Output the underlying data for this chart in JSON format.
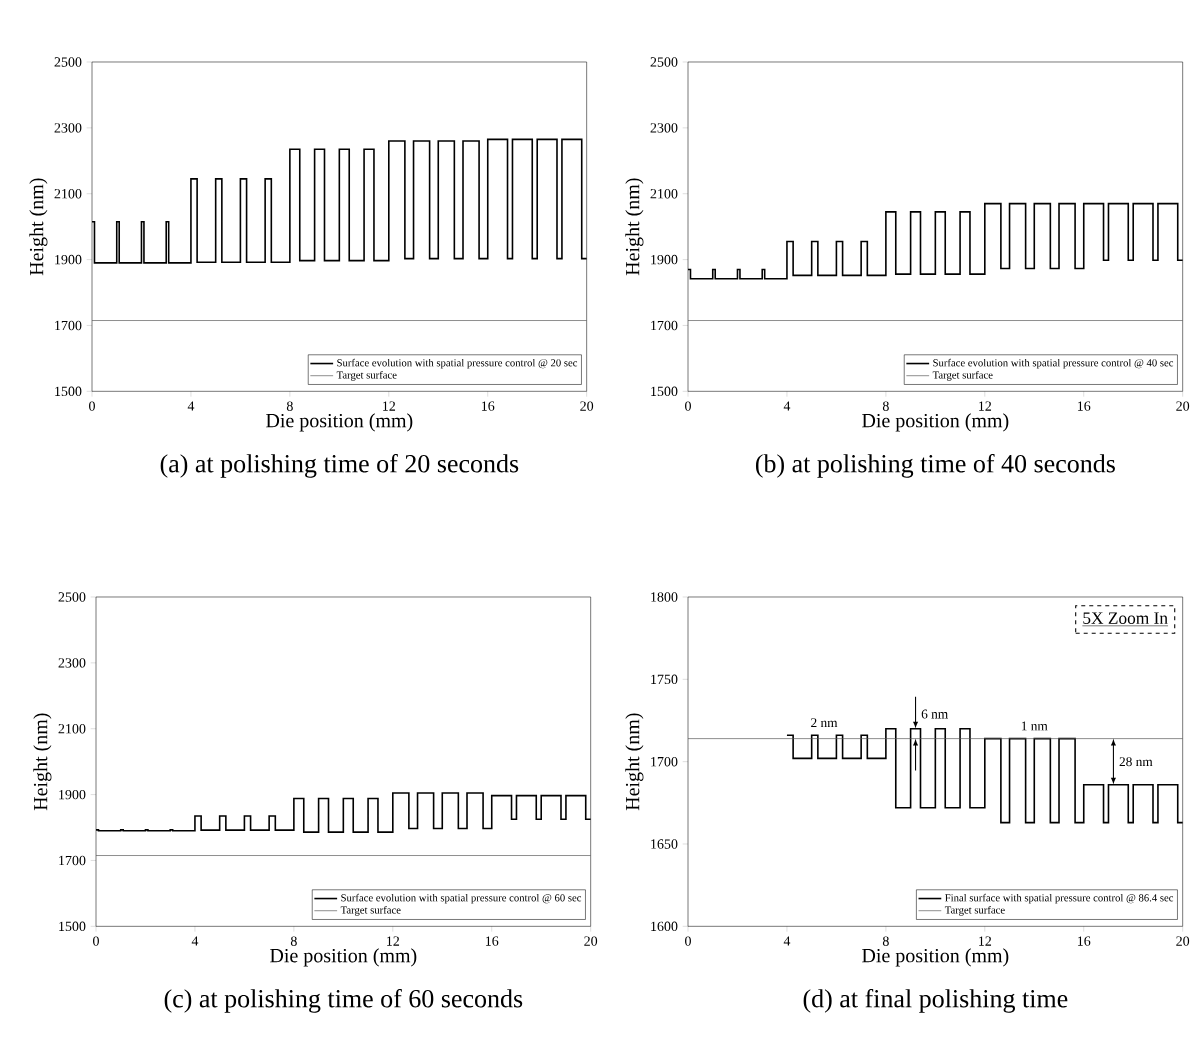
{
  "chart_data": [
    {
      "type": "line",
      "title": "(a) at polishing time of 20 seconds",
      "xlabel": "Die position (mm)",
      "ylabel": "Height (nm)",
      "xlim": [
        0,
        20
      ],
      "ylim": [
        1500,
        2500
      ],
      "xticks": [
        0,
        4,
        8,
        12,
        16,
        20
      ],
      "yticks": [
        1500,
        1700,
        1900,
        2100,
        2300,
        2500
      ],
      "legend": "bottom right",
      "series": [
        {
          "name": "Surface evolution with spatial pressure control @ 20 sec",
          "type": "step",
          "color": "#000000",
          "x": [
            0,
            0.1,
            1,
            1.1,
            2,
            2.1,
            3,
            3.1,
            4,
            4.25,
            5,
            5.25,
            6,
            6.25,
            7,
            7.25,
            8,
            8.4,
            9,
            9.4,
            10,
            10.4,
            11,
            11.4,
            12,
            12.65,
            13,
            13.65,
            14,
            14.65,
            15,
            15.65,
            16,
            16.8,
            17,
            17.8,
            18,
            18.8,
            19,
            19.8,
            20
          ],
          "values": [
            2015,
            1890,
            2015,
            1890,
            2015,
            1890,
            2015,
            1890,
            2145,
            1892,
            2145,
            1892,
            2145,
            1892,
            2145,
            1892,
            2235,
            1897,
            2235,
            1897,
            2235,
            1897,
            2235,
            1897,
            2260,
            1903,
            2260,
            1903,
            2260,
            1903,
            2260,
            1903,
            2265,
            1903,
            2265,
            1903,
            2265,
            1903,
            2265,
            1903,
            1903
          ]
        },
        {
          "name": "Target surface",
          "type": "line",
          "color": "#555555",
          "x": [
            0,
            20
          ],
          "values": [
            1715,
            1715
          ]
        }
      ]
    },
    {
      "type": "line",
      "title": "(b) at polishing time of 40 seconds",
      "xlabel": "Die position (mm)",
      "ylabel": "Height (nm)",
      "xlim": [
        0,
        20
      ],
      "ylim": [
        1500,
        2500
      ],
      "xticks": [
        0,
        4,
        8,
        12,
        16,
        20
      ],
      "yticks": [
        1500,
        1700,
        1900,
        2100,
        2300,
        2500
      ],
      "legend": "bottom right",
      "series": [
        {
          "name": "Surface evolution with spatial pressure control @ 40 sec",
          "type": "step",
          "color": "#000000",
          "x": [
            0,
            0.1,
            1,
            1.1,
            2,
            2.1,
            3,
            3.1,
            4,
            4.25,
            5,
            5.25,
            6,
            6.25,
            7,
            7.25,
            8,
            8.4,
            9,
            9.4,
            10,
            10.4,
            11,
            11.4,
            12,
            12.65,
            13,
            13.65,
            14,
            14.65,
            15,
            15.65,
            16,
            16.8,
            17,
            17.8,
            18,
            18.8,
            19,
            19.8,
            20
          ],
          "values": [
            1870,
            1842,
            1870,
            1842,
            1870,
            1842,
            1870,
            1842,
            1955,
            1852,
            1955,
            1852,
            1955,
            1852,
            1955,
            1852,
            2045,
            1856,
            2045,
            1856,
            2045,
            1856,
            2045,
            1856,
            2070,
            1873,
            2070,
            1873,
            2070,
            1873,
            2070,
            1873,
            2070,
            1898,
            2070,
            1898,
            2070,
            1898,
            2070,
            1898,
            1898
          ]
        },
        {
          "name": "Target surface",
          "type": "line",
          "color": "#555555",
          "x": [
            0,
            20
          ],
          "values": [
            1715,
            1715
          ]
        }
      ]
    },
    {
      "type": "line",
      "title": "(c) at polishing time of 60 seconds",
      "xlabel": "Die position (mm)",
      "ylabel": "Height (nm)",
      "xlim": [
        0,
        20
      ],
      "ylim": [
        1500,
        2500
      ],
      "xticks": [
        0,
        4,
        8,
        12,
        16,
        20
      ],
      "yticks": [
        1500,
        1700,
        1900,
        2100,
        2300,
        2500
      ],
      "legend": "bottom right",
      "series": [
        {
          "name": "Surface evolution with spatial pressure control @ 60 sec",
          "type": "step",
          "color": "#000000",
          "x": [
            0,
            0.1,
            1,
            1.1,
            2,
            2.1,
            3,
            3.1,
            4,
            4.25,
            5,
            5.25,
            6,
            6.25,
            7,
            7.25,
            8,
            8.4,
            9,
            9.4,
            10,
            10.4,
            11,
            11.4,
            12,
            12.65,
            13,
            13.65,
            14,
            14.65,
            15,
            15.65,
            16,
            16.8,
            17,
            17.8,
            18,
            18.8,
            19,
            19.8,
            20
          ],
          "values": [
            1793,
            1790,
            1793,
            1790,
            1793,
            1790,
            1793,
            1790,
            1835,
            1792,
            1835,
            1792,
            1835,
            1792,
            1835,
            1792,
            1888,
            1786,
            1888,
            1786,
            1888,
            1786,
            1888,
            1786,
            1905,
            1797,
            1905,
            1797,
            1905,
            1797,
            1905,
            1797,
            1897,
            1825,
            1897,
            1825,
            1897,
            1825,
            1897,
            1825,
            1825
          ]
        },
        {
          "name": "Target surface",
          "type": "line",
          "color": "#555555",
          "x": [
            0,
            20
          ],
          "values": [
            1715,
            1715
          ]
        }
      ]
    },
    {
      "type": "line",
      "title": "(d) at final polishing time",
      "xlabel": "Die position (mm)",
      "ylabel": "Height (nm)",
      "xlim": [
        0,
        20
      ],
      "ylim": [
        1600,
        1800
      ],
      "xticks": [
        0,
        4,
        8,
        12,
        16,
        20
      ],
      "yticks": [
        1600,
        1650,
        1700,
        1750,
        1800
      ],
      "legend": "bottom right",
      "annotations": [
        "5X Zoom In",
        {
          "text": "2 nm",
          "x": 5.5,
          "y": 1716
        },
        {
          "text": "6 nm",
          "x": 9.2,
          "y": 1720
        },
        {
          "text": "1 nm",
          "x": 14,
          "y": 1714
        },
        {
          "text": "28 nm",
          "x": 17.2,
          "y": 1686
        }
      ],
      "series": [
        {
          "name": "Final surface with spatial pressure control @ 86.4 sec",
          "type": "step",
          "color": "#000000",
          "x": [
            4,
            4.25,
            5,
            5.25,
            6,
            6.25,
            7,
            7.25,
            8,
            8.4,
            9,
            9.4,
            10,
            10.4,
            11,
            11.4,
            12,
            12.65,
            13,
            13.65,
            14,
            14.65,
            15,
            15.65,
            16,
            16.8,
            17,
            17.8,
            18,
            18.8,
            19,
            19.8,
            20
          ],
          "values": [
            1716,
            1702,
            1716,
            1702,
            1716,
            1702,
            1716,
            1702,
            1720,
            1672,
            1720,
            1672,
            1720,
            1672,
            1720,
            1672,
            1714,
            1663,
            1714,
            1663,
            1714,
            1663,
            1714,
            1663,
            1686,
            1663,
            1686,
            1663,
            1686,
            1663,
            1686,
            1663,
            1663
          ]
        },
        {
          "name": "Target surface",
          "type": "line",
          "color": "#555555",
          "x": [
            0,
            20
          ],
          "values": [
            1714,
            1714
          ]
        }
      ]
    }
  ]
}
